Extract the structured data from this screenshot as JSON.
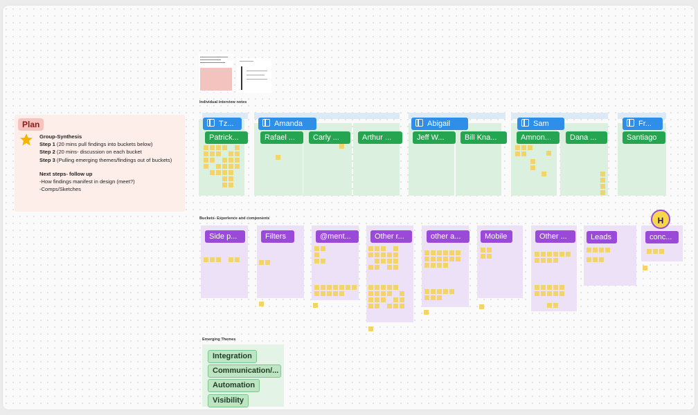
{
  "plan": {
    "tag": "Plan",
    "group_title": "Group-Synthesis",
    "steps": [
      {
        "label": "Step 1",
        "text": "(20 mins pull findings into buckets below)"
      },
      {
        "label": "Step 2",
        "text": "(20 mins- discussion on each bucket"
      },
      {
        "label": "Step 3",
        "text": "(Pulling emerging themes/findings out of buckets)"
      }
    ],
    "next_title": "Next steps- follow up",
    "next_items": [
      "-How findings manifest in design (meet?)",
      "-Comps/Sketches"
    ],
    "star_icon": "star-icon"
  },
  "interview": {
    "section_title": "Individual interview notes",
    "board_tags": [
      "Tz...",
      "Amanda",
      "Abigail",
      "Sam",
      "Fr..."
    ],
    "people": [
      "Patrick...",
      "Rafael ...",
      "Carly ...",
      "Arthur ...",
      "Jeff W...",
      "Bill Kna...",
      "Amnon...",
      "Dana ...",
      "Santiago"
    ]
  },
  "buckets": {
    "section_title": "Buckets- Experience and components",
    "labels": [
      "Side p...",
      "Filters",
      "@ment...",
      "Other r...",
      "other a...",
      "Mobile",
      "Other ...",
      "Leads",
      "conc..."
    ]
  },
  "themes": {
    "section_title": "Emerging Themes",
    "items": [
      "Integration",
      "Communication/...",
      "Automation",
      "Visibility"
    ]
  },
  "avatar": {
    "initial": "H"
  },
  "colors": {
    "interview_column": "#dcf0e0",
    "bucket_column": "#ece1f6",
    "person_tag": "#26a551",
    "bucket_tag": "#9a49d8",
    "board_tag": "#2f8ee8",
    "sticky": "#f3d46b",
    "plan_bg": "#fdeeea"
  }
}
